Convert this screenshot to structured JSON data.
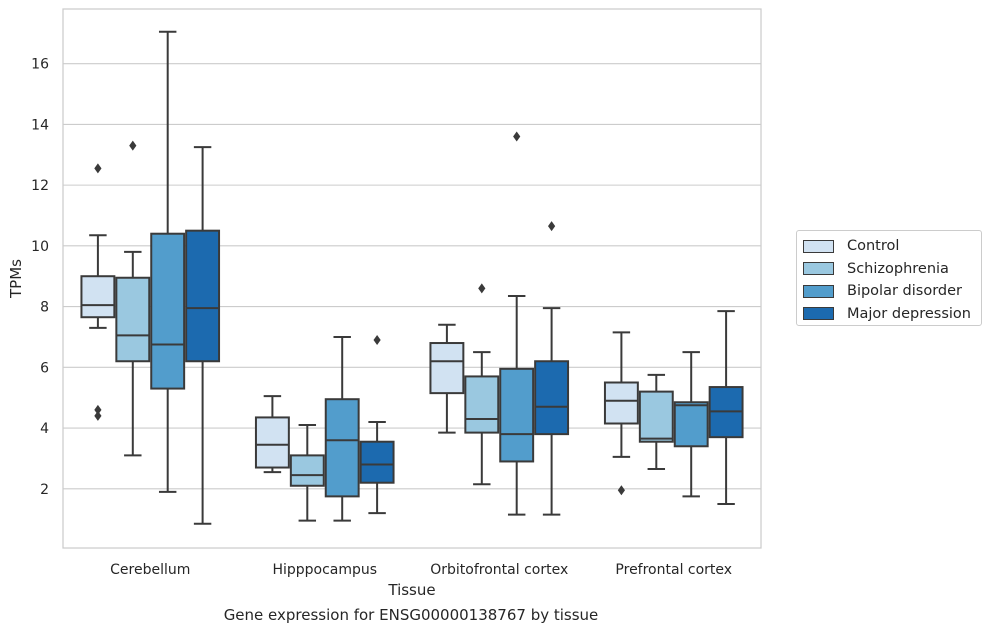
{
  "chart_data": {
    "type": "box",
    "title": "",
    "caption": "Gene expression for ENSG00000138767 by tissue",
    "xlabel": "Tissue",
    "ylabel": "TPMs",
    "ylim": [
      0.05,
      17.8
    ],
    "yticks": [
      2,
      4,
      6,
      8,
      10,
      12,
      14,
      16
    ],
    "grid": true,
    "legend_position": "right",
    "categories": [
      "Cerebellum",
      "Hipppocampus",
      "Orbitofrontal cortex",
      "Prefrontal cortex"
    ],
    "series": [
      {
        "name": "Control",
        "color": "#d1e2f2",
        "boxes": [
          {
            "whisker_low": 7.3,
            "q1": 7.65,
            "median": 8.05,
            "q3": 9.0,
            "whisker_high": 10.35,
            "outliers": [
              12.55,
              4.6,
              4.4
            ]
          },
          {
            "whisker_low": 2.55,
            "q1": 2.7,
            "median": 3.45,
            "q3": 4.35,
            "whisker_high": 5.05,
            "outliers": []
          },
          {
            "whisker_low": 3.85,
            "q1": 5.15,
            "median": 6.2,
            "q3": 6.8,
            "whisker_high": 7.4,
            "outliers": []
          },
          {
            "whisker_low": 3.05,
            "q1": 4.15,
            "median": 4.9,
            "q3": 5.5,
            "whisker_high": 7.15,
            "outliers": [
              1.95
            ]
          }
        ]
      },
      {
        "name": "Schizophrenia",
        "color": "#9ac8e0",
        "boxes": [
          {
            "whisker_low": 3.1,
            "q1": 6.2,
            "median": 7.05,
            "q3": 8.95,
            "whisker_high": 9.8,
            "outliers": [
              13.3
            ]
          },
          {
            "whisker_low": 0.95,
            "q1": 2.1,
            "median": 2.45,
            "q3": 3.1,
            "whisker_high": 4.1,
            "outliers": []
          },
          {
            "whisker_low": 2.15,
            "q1": 3.85,
            "median": 4.3,
            "q3": 5.7,
            "whisker_high": 6.5,
            "outliers": [
              8.6
            ]
          },
          {
            "whisker_low": 2.65,
            "q1": 3.55,
            "median": 3.65,
            "q3": 5.2,
            "whisker_high": 5.75,
            "outliers": []
          }
        ]
      },
      {
        "name": "Bipolar disorder",
        "color": "#529dcc",
        "boxes": [
          {
            "whisker_low": 1.9,
            "q1": 5.3,
            "median": 6.75,
            "q3": 10.4,
            "whisker_high": 17.05,
            "outliers": []
          },
          {
            "whisker_low": 0.95,
            "q1": 1.75,
            "median": 3.6,
            "q3": 4.95,
            "whisker_high": 7.0,
            "outliers": []
          },
          {
            "whisker_low": 1.15,
            "q1": 2.9,
            "median": 3.8,
            "q3": 5.95,
            "whisker_high": 8.35,
            "outliers": [
              13.6
            ]
          },
          {
            "whisker_low": 1.75,
            "q1": 3.4,
            "median": 4.75,
            "q3": 4.85,
            "whisker_high": 6.5,
            "outliers": []
          }
        ]
      },
      {
        "name": "Major depression",
        "color": "#1c6aaf",
        "boxes": [
          {
            "whisker_low": 0.85,
            "q1": 6.2,
            "median": 7.95,
            "q3": 10.5,
            "whisker_high": 13.25,
            "outliers": []
          },
          {
            "whisker_low": 1.2,
            "q1": 2.2,
            "median": 2.8,
            "q3": 3.55,
            "whisker_high": 4.2,
            "outliers": [
              6.9
            ]
          },
          {
            "whisker_low": 1.15,
            "q1": 3.8,
            "median": 4.7,
            "q3": 6.2,
            "whisker_high": 7.95,
            "outliers": [
              10.65
            ]
          },
          {
            "whisker_low": 1.5,
            "q1": 3.7,
            "median": 4.55,
            "q3": 5.35,
            "whisker_high": 7.85,
            "outliers": []
          }
        ]
      }
    ]
  }
}
